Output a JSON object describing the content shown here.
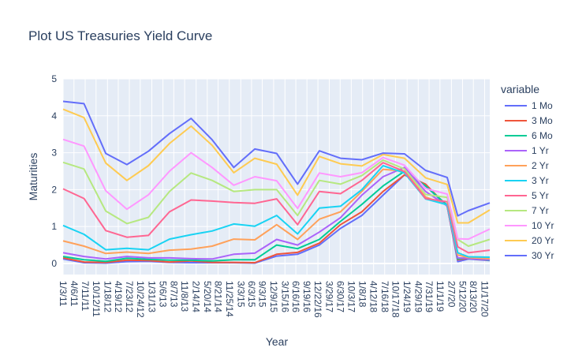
{
  "chart_data": {
    "type": "line",
    "title": "Plot US Treasuries Yield Curve",
    "xlabel": "Year",
    "ylabel": "Maturities",
    "legend_title": "variable",
    "legend_position": "right",
    "grid": true,
    "ylim": [
      -0.3,
      5
    ],
    "yticks": [
      0,
      1,
      2,
      3,
      4,
      5
    ],
    "xlim": [
      "2011-01-03",
      "2020-12-31"
    ],
    "xtick_labels": [
      "1/3/11",
      "4/6/11",
      "7/11/11",
      "10/12/11",
      "1/18/12",
      "4/19/12",
      "7/23/12",
      "10/24/12",
      "1/31/13",
      "5/6/13",
      "8/7/13",
      "11/8/13",
      "2/14/14",
      "5/20/14",
      "8/21/14",
      "11/25/14",
      "3/3/15",
      "6/3/15",
      "9/3/15",
      "12/9/15",
      "3/15/16",
      "6/16/16",
      "9/19/16",
      "12/22/16",
      "3/29/17",
      "6/30/17",
      "10/3/17",
      "1/8/18",
      "4/12/18",
      "7/16/18",
      "10/17/18",
      "1/24/19",
      "4/29/19",
      "7/31/19",
      "11/1/19",
      "2/7/20",
      "5/12/20",
      "8/13/20",
      "11/17/20"
    ],
    "x": [
      "2011-01-03",
      "2011-07-01",
      "2012-01-03",
      "2012-07-02",
      "2013-01-02",
      "2013-07-01",
      "2014-01-02",
      "2014-07-01",
      "2015-01-02",
      "2015-07-01",
      "2016-01-04",
      "2016-07-01",
      "2017-01-03",
      "2017-07-03",
      "2018-01-02",
      "2018-07-02",
      "2019-01-02",
      "2019-07-01",
      "2020-01-02",
      "2020-04-01",
      "2020-07-01",
      "2020-12-31"
    ],
    "series": [
      {
        "name": "1 Mo",
        "color": "#636efa",
        "values": [
          0.12,
          0.02,
          0.01,
          0.05,
          0.06,
          0.03,
          0.02,
          0.02,
          0.02,
          0.01,
          0.2,
          0.25,
          0.5,
          0.95,
          1.3,
          1.85,
          2.4,
          2.1,
          1.55,
          0.05,
          0.12,
          0.08
        ]
      },
      {
        "name": "3 Mo",
        "color": "#EF553B",
        "values": [
          0.15,
          0.04,
          0.03,
          0.09,
          0.08,
          0.04,
          0.07,
          0.03,
          0.03,
          0.02,
          0.25,
          0.3,
          0.55,
          1.05,
          1.4,
          1.95,
          2.4,
          2.15,
          1.55,
          0.1,
          0.14,
          0.09
        ]
      },
      {
        "name": "6 Mo",
        "color": "#00cc96",
        "values": [
          0.19,
          0.1,
          0.06,
          0.14,
          0.11,
          0.09,
          0.09,
          0.07,
          0.1,
          0.1,
          0.5,
          0.4,
          0.65,
          1.14,
          1.6,
          2.1,
          2.5,
          2.1,
          1.58,
          0.12,
          0.16,
          0.09
        ]
      },
      {
        "name": "1 Yr",
        "color": "#ab63fa",
        "values": [
          0.29,
          0.19,
          0.12,
          0.19,
          0.15,
          0.15,
          0.13,
          0.12,
          0.25,
          0.28,
          0.65,
          0.5,
          0.85,
          1.24,
          1.85,
          2.35,
          2.6,
          1.95,
          1.56,
          0.15,
          0.14,
          0.1
        ]
      },
      {
        "name": "2 Yr",
        "color": "#FFA15A",
        "values": [
          0.61,
          0.47,
          0.27,
          0.31,
          0.27,
          0.36,
          0.39,
          0.47,
          0.66,
          0.64,
          1.05,
          0.65,
          1.2,
          1.4,
          1.95,
          2.55,
          2.5,
          1.8,
          1.58,
          0.23,
          0.16,
          0.13
        ]
      },
      {
        "name": "3 Yr",
        "color": "#19d3f3",
        "values": [
          1.03,
          0.79,
          0.37,
          0.41,
          0.37,
          0.66,
          0.78,
          0.88,
          1.07,
          1.01,
          1.3,
          0.8,
          1.5,
          1.55,
          2.0,
          2.65,
          2.45,
          1.75,
          1.59,
          0.29,
          0.18,
          0.17
        ]
      },
      {
        "name": "5 Yr",
        "color": "#FF6692",
        "values": [
          2.02,
          1.76,
          0.89,
          0.71,
          0.76,
          1.4,
          1.72,
          1.69,
          1.65,
          1.63,
          1.75,
          1.05,
          1.95,
          1.89,
          2.25,
          2.73,
          2.49,
          1.76,
          1.67,
          0.45,
          0.29,
          0.36
        ]
      },
      {
        "name": "7 Yr",
        "color": "#B6E880",
        "values": [
          2.74,
          2.56,
          1.42,
          1.08,
          1.25,
          1.95,
          2.45,
          2.25,
          1.95,
          2.0,
          2.0,
          1.3,
          2.25,
          2.15,
          2.38,
          2.8,
          2.56,
          1.87,
          1.79,
          0.65,
          0.47,
          0.65
        ]
      },
      {
        "name": "10 Yr",
        "color": "#FF97FF",
        "values": [
          3.36,
          3.18,
          1.97,
          1.47,
          1.86,
          2.5,
          3.0,
          2.6,
          2.12,
          2.35,
          2.24,
          1.49,
          2.45,
          2.35,
          2.46,
          2.87,
          2.66,
          2.03,
          1.88,
          0.67,
          0.66,
          0.93
        ]
      },
      {
        "name": "20 Yr",
        "color": "#FECB52",
        "values": [
          4.18,
          3.95,
          2.72,
          2.25,
          2.65,
          3.25,
          3.72,
          3.2,
          2.46,
          2.85,
          2.69,
          1.85,
          2.9,
          2.7,
          2.64,
          2.95,
          2.85,
          2.32,
          2.14,
          1.1,
          1.1,
          1.45
        ]
      },
      {
        "name": "30 Yr",
        "color": "#636efa",
        "values": [
          4.39,
          4.33,
          2.98,
          2.68,
          3.04,
          3.52,
          3.93,
          3.35,
          2.6,
          3.1,
          2.98,
          2.15,
          3.05,
          2.85,
          2.81,
          2.99,
          2.97,
          2.52,
          2.33,
          1.29,
          1.43,
          1.64
        ]
      }
    ]
  }
}
